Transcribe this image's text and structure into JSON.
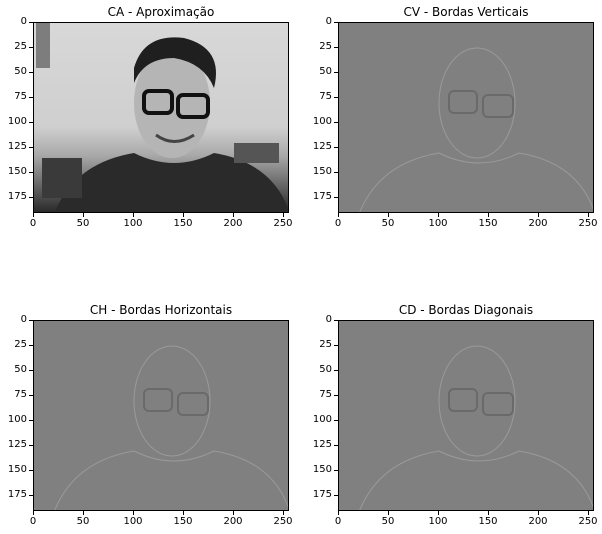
{
  "figure": {
    "panels": [
      {
        "id": "ca",
        "title": "CA - Aproximação"
      },
      {
        "id": "cv",
        "title": "CV - Bordas Verticais"
      },
      {
        "id": "ch",
        "title": "CH - Bordas Horizontais"
      },
      {
        "id": "cd",
        "title": "CD - Bordas Diagonais"
      }
    ],
    "x_ticks": [
      "0",
      "50",
      "100",
      "150",
      "200",
      "250"
    ],
    "y_ticks": [
      "0",
      "25",
      "50",
      "75",
      "100",
      "125",
      "150",
      "175"
    ]
  },
  "colors": {
    "detail_gray": "#808080",
    "frame": "#000000"
  }
}
